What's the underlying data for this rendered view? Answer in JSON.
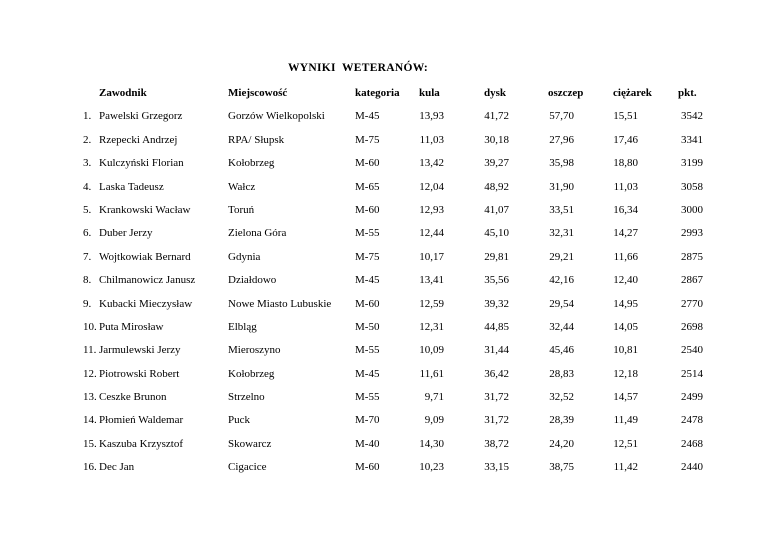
{
  "title": "WYNIKI  WETERANÓW:",
  "table": {
    "headers": {
      "zawodnik": "Zawodnik",
      "miejscowosc": "Miejscowość",
      "kategoria": "kategoria",
      "kula": "kula",
      "dysk": "dysk",
      "oszczep": "oszczep",
      "ciezarek": "ciężarek",
      "pkt": "pkt."
    },
    "rows": [
      {
        "no": "1.",
        "name": "Pawelski Grzegorz",
        "town": "Gorzów Wielkopolski",
        "cat": "M-45",
        "kula": "13,93",
        "dysk": "41,72",
        "oszczep": "57,70",
        "ciezarek": "15,51",
        "pkt": "3542"
      },
      {
        "no": "2.",
        "name": "Rzepecki Andrzej",
        "town": "RPA/ Słupsk",
        "cat": "M-75",
        "kula": "11,03",
        "dysk": "30,18",
        "oszczep": "27,96",
        "ciezarek": "17,46",
        "pkt": "3341"
      },
      {
        "no": "3.",
        "name": "Kulczyński Florian",
        "town": "Kołobrzeg",
        "cat": "M-60",
        "kula": "13,42",
        "dysk": "39,27",
        "oszczep": "35,98",
        "ciezarek": "18,80",
        "pkt": "3199"
      },
      {
        "no": "4.",
        "name": "Laska Tadeusz",
        "town": "Wałcz",
        "cat": "M-65",
        "kula": "12,04",
        "dysk": "48,92",
        "oszczep": "31,90",
        "ciezarek": "11,03",
        "pkt": "3058"
      },
      {
        "no": "5.",
        "name": "Krankowski Wacław",
        "town": "Toruń",
        "cat": "M-60",
        "kula": "12,93",
        "dysk": "41,07",
        "oszczep": "33,51",
        "ciezarek": "16,34",
        "pkt": "3000"
      },
      {
        "no": "6.",
        "name": "Duber Jerzy",
        "town": "Zielona Góra",
        "cat": "M-55",
        "kula": "12,44",
        "dysk": "45,10",
        "oszczep": "32,31",
        "ciezarek": "14,27",
        "pkt": "2993"
      },
      {
        "no": "7.",
        "name": "Wojtkowiak Bernard",
        "town": "Gdynia",
        "cat": "M-75",
        "kula": "10,17",
        "dysk": "29,81",
        "oszczep": "29,21",
        "ciezarek": "11,66",
        "pkt": "2875"
      },
      {
        "no": "8.",
        "name": "Chilmanowicz Janusz",
        "town": "Działdowo",
        "cat": "M-45",
        "kula": "13,41",
        "dysk": "35,56",
        "oszczep": "42,16",
        "ciezarek": "12,40",
        "pkt": "2867"
      },
      {
        "no": "9.",
        "name": "Kubacki Mieczysław",
        "town": "Nowe Miasto Lubuskie",
        "cat": "M-60",
        "kula": "12,59",
        "dysk": "39,32",
        "oszczep": "29,54",
        "ciezarek": "14,95",
        "pkt": "2770"
      },
      {
        "no": "10.",
        "name": "Puta Mirosław",
        "town": "Elbląg",
        "cat": "M-50",
        "kula": "12,31",
        "dysk": "44,85",
        "oszczep": "32,44",
        "ciezarek": "14,05",
        "pkt": "2698"
      },
      {
        "no": "11.",
        "name": "Jarmulewski Jerzy",
        "town": "Mieroszyno",
        "cat": "M-55",
        "kula": "10,09",
        "dysk": "31,44",
        "oszczep": "45,46",
        "ciezarek": "10,81",
        "pkt": "2540"
      },
      {
        "no": "12.",
        "name": "Piotrowski Robert",
        "town": "Kołobrzeg",
        "cat": "M-45",
        "kula": "11,61",
        "dysk": "36,42",
        "oszczep": "28,83",
        "ciezarek": "12,18",
        "pkt": "2514"
      },
      {
        "no": "13.",
        "name": "Ceszke Brunon",
        "town": "Strzelno",
        "cat": "M-55",
        "kula": "9,71",
        "dysk": "31,72",
        "oszczep": "32,52",
        "ciezarek": "14,57",
        "pkt": "2499"
      },
      {
        "no": "14.",
        "name": "Płomień Waldemar",
        "town": "Puck",
        "cat": "M-70",
        "kula": "9,09",
        "dysk": "31,72",
        "oszczep": "28,39",
        "ciezarek": "11,49",
        "pkt": "2478"
      },
      {
        "no": "15.",
        "name": "Kaszuba Krzysztof",
        "town": "Skowarcz",
        "cat": "M-40",
        "kula": "14,30",
        "dysk": "38,72",
        "oszczep": "24,20",
        "ciezarek": "12,51",
        "pkt": "2468"
      },
      {
        "no": "16.",
        "name": "Dec Jan",
        "town": "Cigacice",
        "cat": "M-60",
        "kula": "10,23",
        "dysk": "33,15",
        "oszczep": "38,75",
        "ciezarek": "11,42",
        "pkt": "2440"
      }
    ]
  }
}
